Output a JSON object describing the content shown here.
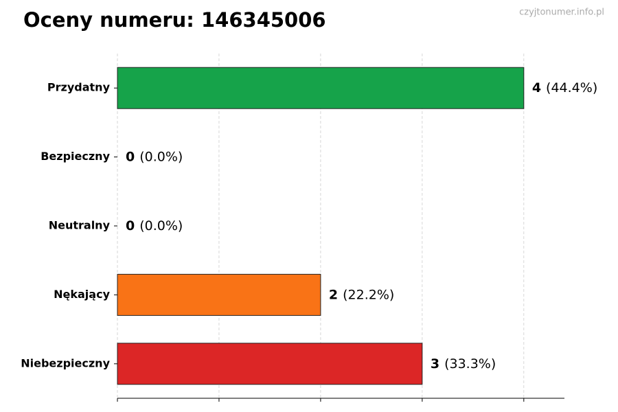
{
  "chart_data": {
    "type": "bar",
    "orientation": "horizontal",
    "title": "Oceny numeru: 146345006",
    "watermark": "czyjtonumer.info.pl",
    "categories": [
      "Przydatny",
      "Bezpieczny",
      "Neutralny",
      "Nękający",
      "Niebezpieczny"
    ],
    "values": [
      4,
      0,
      0,
      2,
      3
    ],
    "percentages": [
      44.4,
      0.0,
      0.0,
      22.2,
      33.3
    ],
    "percentage_labels": [
      "(44.4%)",
      "(0.0%)",
      "(0.0%)",
      "(22.2%)",
      "(33.3%)"
    ],
    "colors": [
      "#16a34a",
      "#22c55e",
      "#9ca3af",
      "#f97316",
      "#dc2626"
    ],
    "xlim": [
      0,
      4.4
    ],
    "xticks": [
      0,
      1,
      2,
      3,
      4
    ],
    "grid": true
  }
}
